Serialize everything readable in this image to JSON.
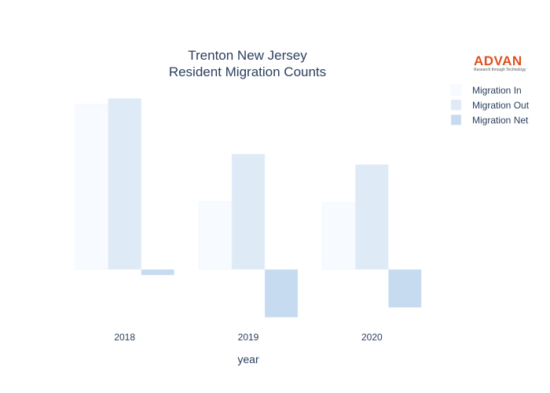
{
  "chart_data": {
    "type": "bar",
    "title": "Trenton New Jersey",
    "subtitle": "Resident Migration Counts",
    "xlabel": "year",
    "ylabel": "",
    "categories": [
      "2018",
      "2019",
      "2020"
    ],
    "series": [
      {
        "name": "Migration In",
        "values": [
          2350,
          960,
          950
        ],
        "color": "#f7fbff"
      },
      {
        "name": "Migration Out",
        "values": [
          2430,
          1640,
          1490
        ],
        "color": "#deebf7"
      },
      {
        "name": "Migration Net",
        "values": [
          -80,
          -680,
          -540
        ],
        "color": "#c6dbef"
      }
    ],
    "ylim": [
      -750,
      2600
    ],
    "grid": false,
    "legend_position": "top-right"
  },
  "logo": {
    "name": "ADVAN",
    "tagline": "Research through Technology"
  }
}
